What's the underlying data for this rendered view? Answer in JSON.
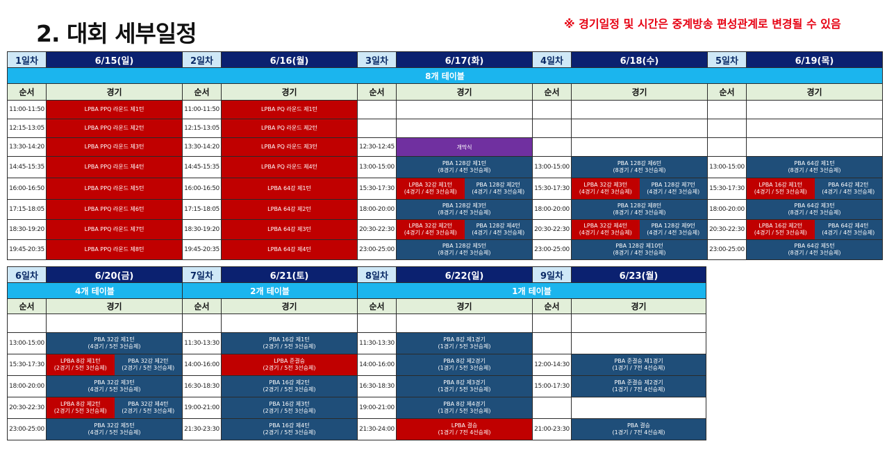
{
  "title": "2. 대회 세부일정",
  "notice": "※ 경기일정 및 시간은 중계방송 편성관계로 변경될 수 있음",
  "col_seq": "순서",
  "col_match": "경기",
  "top": {
    "days": [
      {
        "day": "1일차",
        "date": "6/15(일)"
      },
      {
        "day": "2일차",
        "date": "6/16(월)"
      },
      {
        "day": "3일차",
        "date": "6/17(화)"
      },
      {
        "day": "4일차",
        "date": "6/18(수)"
      },
      {
        "day": "5일차",
        "date": "6/19(목)"
      }
    ],
    "tables_label": "8개 테이블",
    "rows": [
      {
        "d1t": "11:00-11:50",
        "d1": "LPBA PPQ 라운드 제1턴",
        "d2t": "11:00-11:50",
        "d2": "LPBA PQ 라운드 제1턴"
      },
      {
        "d1t": "12:15-13:05",
        "d1": "LPBA PPQ 라운드 제2턴",
        "d2t": "12:15-13:05",
        "d2": "LPBA PQ 라운드 제2턴"
      },
      {
        "d1t": "13:30-14:20",
        "d1": "LPBA PPQ 라운드 제3턴",
        "d2t": "13:30-14:20",
        "d2": "LPBA PQ 라운드 제3턴",
        "d3t": "12:30-12:45",
        "d3": "개막식"
      },
      {
        "d1t": "14:45-15:35",
        "d1": "LPBA PPQ 라운드 제4턴",
        "d2t": "14:45-15:35",
        "d2": "LPBA PQ 라운드 제4턴",
        "d3t": "13:00-15:00",
        "d3a": "PBA 128강 제1턴",
        "d3b": "(8경기 / 4전 3선승제)",
        "d4t": "13:00-15:00",
        "d4a": "PBA 128강 제6턴",
        "d4b": "(8경기 / 4전 3선승제)",
        "d5t": "13:00-15:00",
        "d5a": "PBA 64강 제1턴",
        "d5b": "(8경기 / 4전 3선승제)"
      },
      {
        "d1t": "16:00-16:50",
        "d1": "LPBA PPQ 라운드 제5턴",
        "d2t": "16:00-16:50",
        "d2": "LPBA 64강 제1턴",
        "d3t": "15:30-17:30",
        "d3la": "LPBA 32강 제1턴",
        "d3lb": "(4경기 / 4전 3선승제)",
        "d3ra": "PBA 128강 제2턴",
        "d3rb": "(4경기 / 4전 3선승제)",
        "d4t": "15:30-17:30",
        "d4la": "LPBA 32강 제3턴",
        "d4lb": "(4경기 / 4전 3선승제)",
        "d4ra": "PBA 128강 제7턴",
        "d4rb": "(4경기 / 4전 3선승제)",
        "d5t": "15:30-17:30",
        "d5la": "LPBA 16강 제1턴",
        "d5lb": "(4경기 / 5전 3선승제)",
        "d5ra": "PBA 64강 제2턴",
        "d5rb": "(4경기 / 4전 3선승제)"
      },
      {
        "d1t": "17:15-18:05",
        "d1": "LPBA PPQ 라운드 제6턴",
        "d2t": "17:15-18:05",
        "d2": "LPBA 64강 제2턴",
        "d3t": "18:00-20:00",
        "d3a": "PBA 128강 제3턴",
        "d3b": "(8경기 / 4전 3선승제)",
        "d4t": "18:00-20:00",
        "d4a": "PBA 128강 제8턴",
        "d4b": "(8경기 / 4전 3선승제)",
        "d5t": "18:00-20:00",
        "d5a": "PBA 64강 제3턴",
        "d5b": "(8경기 / 4전 3선승제)"
      },
      {
        "d1t": "18:30-19:20",
        "d1": "LPBA PPQ 라운드 제7턴",
        "d2t": "18:30-19:20",
        "d2": "LPBA 64강 제3턴",
        "d3t": "20:30-22:30",
        "d3la": "LPBA 32강 제2턴",
        "d3lb": "(4경기 / 4전 3선승제)",
        "d3ra": "PBA 128강 제4턴",
        "d3rb": "(4경기 / 4전 3선승제)",
        "d4t": "20:30-22:30",
        "d4la": "LPBA 32강 제4턴",
        "d4lb": "(4경기 / 4전 3선승제)",
        "d4ra": "PBA 128강 제9턴",
        "d4rb": "(4경기 / 4전 3선승제)",
        "d5t": "20:30-22:30",
        "d5la": "LPBA 16강 제2턴",
        "d5lb": "(4경기 / 5전 3선승제)",
        "d5ra": "PBA 64강 제4턴",
        "d5rb": "(4경기 / 4전 3선승제)"
      },
      {
        "d1t": "19:45-20:35",
        "d1": "LPBA PPQ 라운드 제8턴",
        "d2t": "19:45-20:35",
        "d2": "LPBA 64강 제4턴",
        "d3t": "23:00-25:00",
        "d3a": "PBA 128강 제5턴",
        "d3b": "(8경기 / 4전 3선승제)",
        "d4t": "23:00-25:00",
        "d4a": "PBA 128강 제10턴",
        "d4b": "(8경기 / 4전 3선승제)",
        "d5t": "23:00-25:00",
        "d5a": "PBA 64강 제5턴",
        "d5b": "(8경기 / 4전 3선승제)"
      }
    ]
  },
  "bottom": {
    "days": [
      {
        "day": "6일차",
        "date": "6/20(금)"
      },
      {
        "day": "7일차",
        "date": "6/21(토)"
      },
      {
        "day": "8일차",
        "date": "6/22(일)"
      },
      {
        "day": "9일차",
        "date": "6/23(월)"
      }
    ],
    "tables6": "4개 테이블",
    "tables7": "2개 테이블",
    "tables89": "1개 테이블",
    "rows": [
      {},
      {
        "d6t": "13:00-15:00",
        "d6a": "PBA 32강 제1턴",
        "d6b": "(4경기 / 5전 3선승제)",
        "d7t": "11:30-13:30",
        "d7a": "PBA 16강 제1턴",
        "d7b": "(2경기 / 5전 3선승제)",
        "d8t": "11:30-13:30",
        "d8a": "PBA 8강 제1경기",
        "d8b": "(1경기 / 5전 3선승제)"
      },
      {
        "d6t": "15:30-17:30",
        "d6la": "LPBA 8강 제1턴",
        "d6lb": "(2경기 / 5전 3선승제)",
        "d6ra": "PBA 32강 제2턴",
        "d6rb": "(2경기 / 5전 3선승제)",
        "d7t": "14:00-16:00",
        "d7a": "LPBA 준결승",
        "d7b": "(2경기 / 5전 3선승제)",
        "d8t": "14:00-16:00",
        "d8a": "PBA 8강 제2경기",
        "d8b": "(1경기 / 5전 3선승제)",
        "d9t": "12:00-14:30",
        "d9a": "PBA 준결승 제1경기",
        "d9b": "(1경기 / 7전 4선승제)"
      },
      {
        "d6t": "18:00-20:00",
        "d6a": "PBA 32강 제3턴",
        "d6b": "(4경기 / 5전 3선승제)",
        "d7t": "16:30-18:30",
        "d7a": "PBA 16강 제2턴",
        "d7b": "(2경기 / 5전 3선승제)",
        "d8t": "16:30-18:30",
        "d8a": "PBA 8강 제3경기",
        "d8b": "(1경기 / 5전 3선승제)",
        "d9t": "15:00-17:30",
        "d9a": "PBA 준결승 제2경기",
        "d9b": "(1경기 / 7전 4선승제)"
      },
      {
        "d6t": "20:30-22:30",
        "d6la": "LPBA 8강 제2턴",
        "d6lb": "(2경기 / 5전 3선승제)",
        "d6ra": "PBA 32강 제4턴",
        "d6rb": "(2경기 / 5전 3선승제)",
        "d7t": "19:00-21:00",
        "d7a": "PBA 16강 제3턴",
        "d7b": "(2경기 / 5전 3선승제)",
        "d8t": "19:00-21:00",
        "d8a": "PBA 8강 제4경기",
        "d8b": "(1경기 / 5전 3선승제)"
      },
      {
        "d6t": "23:00-25:00",
        "d6a": "PBA 32강 제5턴",
        "d6b": "(4경기 / 5전 3선승제)",
        "d7t": "21:30-23:30",
        "d7a": "PBA 16강 제4턴",
        "d7b": "(2경기 / 5전 3선승제)",
        "d8t": "21:30-24:00",
        "d8a": "LPBA 결승",
        "d8b": "(1경기 / 7전 4선승제)",
        "d9t": "21:00-23:30",
        "d9a": "PBA 결승",
        "d9b": "(1경기 / 7전 4선승제)"
      }
    ]
  },
  "colors": {
    "navy": "#0b2170",
    "red": "#c00000",
    "blue": "#1f4e79",
    "purple": "#7030a0",
    "cyan": "#1bb5ee",
    "green": "#e2efd9"
  }
}
